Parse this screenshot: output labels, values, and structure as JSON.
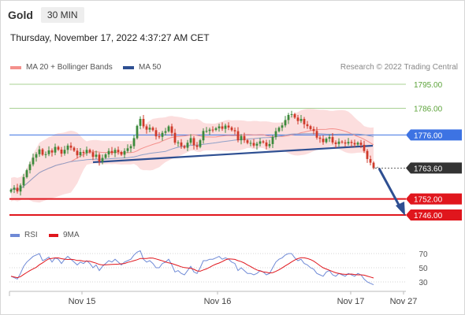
{
  "header": {
    "symbol": "Gold",
    "interval": "30 MIN"
  },
  "timestamp": "Thursday, November 17, 2022 4:37:27 AM CET",
  "legend": {
    "ma20_label": "MA 20 + Bollinger Bands",
    "ma20_color": "#f4908c",
    "ma50_label": "MA 50",
    "ma50_color": "#2e4f92"
  },
  "research_credit": "Research © 2022 Trading Central",
  "rsi_legend": {
    "rsi_label": "RSI",
    "rsi_color": "#6f8ad6",
    "ma_label": "9MA",
    "ma_color": "#e0161d"
  },
  "colors": {
    "candle_up": "#3c8a3c",
    "candle_down": "#cf3a2a",
    "resistance": "#8cc06f",
    "pivot": "#3d73e3",
    "support": "#e0161d",
    "trendline": "#2e4f92",
    "current_price_bg": "#333333",
    "band_fill": "#fbd3d3"
  },
  "chart_data": [
    {
      "type": "candlestick",
      "title": "",
      "x_ticks": [
        "Nov 15",
        "Nov 16",
        "Nov 17",
        "Nov 27"
      ],
      "ylim": [
        1741,
        1800
      ],
      "price_levels": [
        {
          "value": 1795.0,
          "label": "1795.00",
          "kind": "resistance"
        },
        {
          "value": 1786.0,
          "label": "1786.00",
          "kind": "resistance"
        },
        {
          "value": 1776.0,
          "label": "1776.00",
          "kind": "pivot"
        },
        {
          "value": 1763.6,
          "label": "1763.60",
          "kind": "current"
        },
        {
          "value": 1752.0,
          "label": "1752.00",
          "kind": "support"
        },
        {
          "value": 1746.0,
          "label": "1746.00",
          "kind": "support"
        }
      ],
      "close": [
        1755.5,
        1756.2,
        1754.8,
        1757.1,
        1760.2,
        1762.8,
        1765.0,
        1767.5,
        1768.8,
        1770.6,
        1768.6,
        1768.8,
        1770.2,
        1769.4,
        1771.5,
        1770.5,
        1769.0,
        1770.4,
        1772.0,
        1771.2,
        1770.1,
        1768.4,
        1769.6,
        1769.2,
        1770.4,
        1769.5,
        1767.8,
        1768.6,
        1766.0,
        1767.4,
        1768.7,
        1770.0,
        1769.2,
        1770.4,
        1769.6,
        1768.6,
        1770.0,
        1771.0,
        1771.8,
        1774.8,
        1779.4,
        1782.0,
        1779.2,
        1778.0,
        1778.7,
        1777.8,
        1775.5,
        1775.3,
        1776.8,
        1777.4,
        1779.2,
        1776.8,
        1773.1,
        1773.2,
        1771.8,
        1771.2,
        1773.1,
        1774.8,
        1772.1,
        1771.5,
        1774.0,
        1777.5,
        1777.5,
        1778.0,
        1777.9,
        1778.5,
        1779.2,
        1778.3,
        1779.5,
        1778.8,
        1777.8,
        1777.4,
        1774.0,
        1775.6,
        1774.0,
        1773.0,
        1773.0,
        1772.0,
        1772.7,
        1773.6,
        1773.2,
        1771.8,
        1772.6,
        1775.2,
        1777.4,
        1778.7,
        1779.6,
        1781.6,
        1783.5,
        1783.8,
        1782.5,
        1781.2,
        1782.0,
        1780.0,
        1779.3,
        1778.2,
        1777.5,
        1775.0,
        1774.6,
        1773.3,
        1774.6,
        1775.2,
        1773.2,
        1772.6,
        1773.5,
        1773.2,
        1772.8,
        1773.4,
        1773.0,
        1772.4,
        1773.1,
        1772.3,
        1770.0,
        1767.0,
        1765.6,
        1763.6
      ],
      "moving_averages": [
        {
          "name": "MA 20",
          "period": 20,
          "bands": "Bollinger"
        },
        {
          "name": "MA 50",
          "period": 50
        }
      ]
    },
    {
      "type": "line",
      "title": "",
      "ylim": [
        20,
        80
      ],
      "y_ticks": [
        30,
        50,
        70
      ],
      "series": [
        {
          "name": "RSI",
          "values": [
            38,
            36,
            34,
            42,
            52,
            58,
            62,
            66,
            68,
            70,
            60,
            62,
            65,
            58,
            64,
            62,
            56,
            62,
            66,
            62,
            58,
            54,
            58,
            56,
            60,
            56,
            50,
            54,
            46,
            52,
            56,
            60,
            58,
            62,
            58,
            54,
            58,
            60,
            62,
            68,
            72,
            74,
            62,
            58,
            60,
            56,
            50,
            50,
            56,
            58,
            62,
            54,
            44,
            46,
            42,
            40,
            46,
            52,
            44,
            42,
            50,
            60,
            60,
            62,
            62,
            64,
            66,
            62,
            64,
            62,
            58,
            56,
            46,
            50,
            46,
            42,
            42,
            40,
            42,
            46,
            44,
            40,
            42,
            50,
            58,
            62,
            64,
            68,
            70,
            70,
            64,
            60,
            62,
            56,
            54,
            50,
            48,
            42,
            40,
            38,
            44,
            46,
            40,
            38,
            42,
            40,
            38,
            42,
            40,
            38,
            42,
            40,
            34,
            30,
            28,
            26
          ]
        },
        {
          "name": "9MA",
          "period": 9
        }
      ]
    }
  ]
}
